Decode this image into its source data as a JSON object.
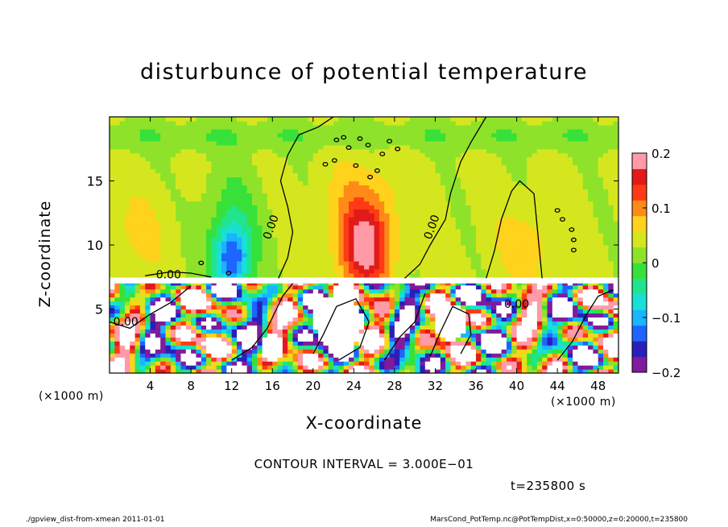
{
  "chart_data": {
    "type": "heatmap",
    "title": "disturbunce of potential temperature",
    "xlabel": "X-coordinate",
    "ylabel": "Z-coordinate",
    "x_unit_left": "(×1000 m)",
    "x_unit_right": "(×1000 m)",
    "xlim": [
      0,
      50
    ],
    "ylim": [
      0,
      20
    ],
    "x_ticks": [
      4,
      8,
      12,
      16,
      20,
      24,
      28,
      32,
      36,
      40,
      44,
      48
    ],
    "y_ticks": [
      5,
      10,
      15
    ],
    "colorbar": {
      "min": -0.2,
      "max": 0.2,
      "ticks": [
        {
          "value": 0.2,
          "label": "0.2"
        },
        {
          "value": 0.1,
          "label": "0.1"
        },
        {
          "value": 0,
          "label": "0"
        },
        {
          "value": -0.1,
          "label": "−0.1"
        },
        {
          "value": -0.2,
          "label": "−0.2"
        }
      ],
      "colors": [
        "#7f1b9c",
        "#2a1fb8",
        "#1e64ff",
        "#1ab4ff",
        "#19e0d6",
        "#20e48e",
        "#38e03a",
        "#8ee32a",
        "#d6e61e",
        "#ffd21c",
        "#ff8a18",
        "#ff3a14",
        "#e11a1a",
        "#ff9aa6"
      ]
    },
    "contour_labels": [
      {
        "text": "0.00",
        "x": 16.2,
        "z": 11.3
      },
      {
        "text": "0.00",
        "x": 32.0,
        "z": 11.3
      },
      {
        "text": "0.00",
        "x": 5.8,
        "z": 7.4
      },
      {
        "text": "0.00",
        "x": 1.6,
        "z": 3.7
      },
      {
        "text": "0.00",
        "x": 40.0,
        "z": 5.1
      }
    ]
  },
  "contour_interval": "CONTOUR INTERVAL = 3.000E−01",
  "time_label": "t=235800 s",
  "footer_left": "./gpview_dist-from-xmean  2011-01-01",
  "footer_right": "MarsCond_PotTemp.nc@PotTempDist,x=0:50000,z=0:20000,t=235800"
}
